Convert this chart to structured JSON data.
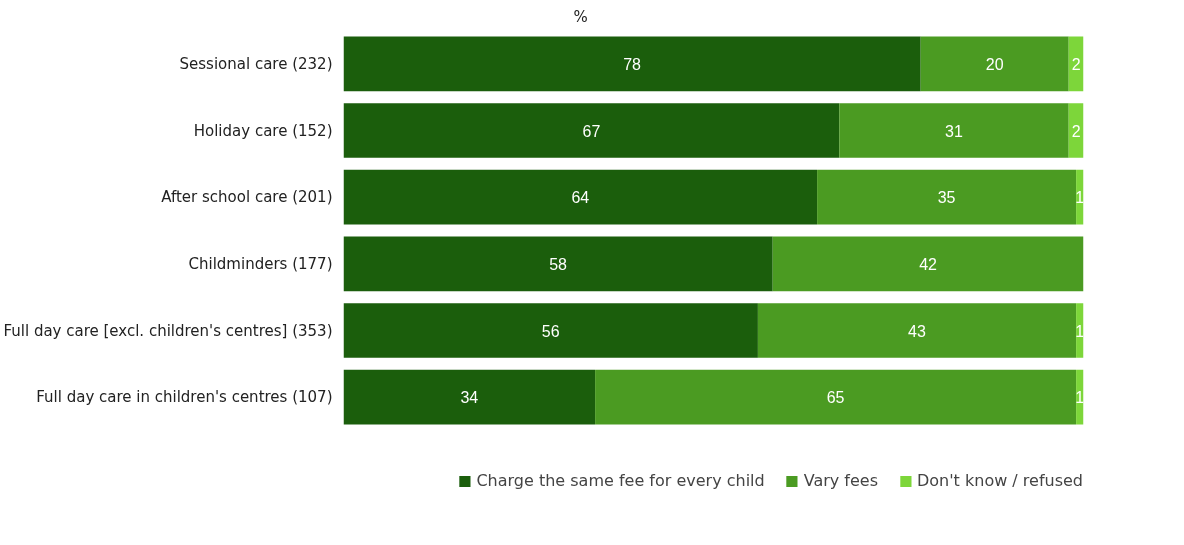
{
  "chart_data": {
    "type": "bar",
    "orientation": "horizontal",
    "stacked": true,
    "data_labels": true,
    "legend": "bottom",
    "grid": false,
    "tick_labels": "y",
    "xlim": [
      0,
      100
    ],
    "annotations": [
      "%"
    ],
    "categories": [
      "Sessional care (232)",
      "Holiday care (152)",
      "After school care (201)",
      "Childminders (177)",
      "Full day care [excl. children's centres] (353)",
      "Full day care in children's centres (107)"
    ],
    "series": [
      {
        "name": "Charge the same fee for every child",
        "color": "#1b5e0c",
        "values": [
          78,
          67,
          64,
          58,
          56,
          34
        ]
      },
      {
        "name": "Vary fees",
        "color": "#4b9b22",
        "values": [
          20,
          31,
          35,
          42,
          43,
          65
        ]
      },
      {
        "name": "Don't know / refused",
        "color": "#7dd63a",
        "values": [
          2,
          2,
          1,
          null,
          1,
          1
        ]
      }
    ]
  }
}
